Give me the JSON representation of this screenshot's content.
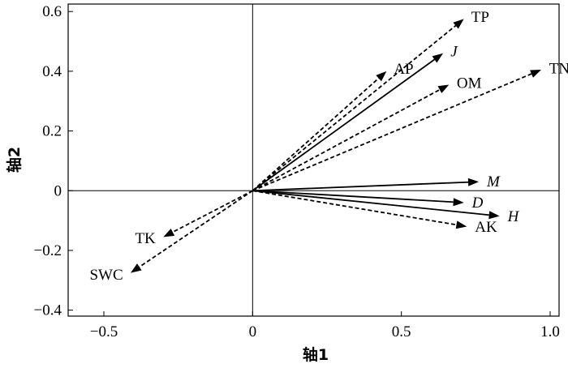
{
  "chart_data": {
    "type": "biplot",
    "xlabel": "轴1",
    "ylabel": "轴2",
    "xlim": [
      -0.62,
      1.03
    ],
    "ylim": [
      -0.42,
      0.625
    ],
    "xticks": [
      {
        "value": -0.5,
        "label": "−0.5"
      },
      {
        "value": 0,
        "label": "0"
      },
      {
        "value": 0.5,
        "label": "0.5"
      },
      {
        "value": 1.0,
        "label": "1.0"
      }
    ],
    "yticks": [
      {
        "value": -0.4,
        "label": "−0.4"
      },
      {
        "value": -0.2,
        "label": "−0.2"
      },
      {
        "value": 0,
        "label": "0"
      },
      {
        "value": 0.2,
        "label": "0.2"
      },
      {
        "value": 0.4,
        "label": "0.4"
      },
      {
        "value": 0.6,
        "label": "0.6"
      }
    ],
    "vectors": [
      {
        "name": "TP",
        "x": 0.71,
        "y": 0.575,
        "style": "dashed",
        "italic": false
      },
      {
        "name": "J",
        "x": 0.64,
        "y": 0.46,
        "style": "solid",
        "italic": true
      },
      {
        "name": "AP",
        "x": 0.45,
        "y": 0.4,
        "style": "dashed",
        "italic": false
      },
      {
        "name": "OM",
        "x": 0.66,
        "y": 0.355,
        "style": "dashed",
        "italic": false
      },
      {
        "name": "TN",
        "x": 0.97,
        "y": 0.405,
        "style": "dashed",
        "italic": false
      },
      {
        "name": "M",
        "x": 0.76,
        "y": 0.03,
        "style": "solid",
        "italic": true
      },
      {
        "name": "D",
        "x": 0.71,
        "y": -0.04,
        "style": "solid",
        "italic": true
      },
      {
        "name": "H",
        "x": 0.83,
        "y": -0.085,
        "style": "solid",
        "italic": true
      },
      {
        "name": "AK",
        "x": 0.72,
        "y": -0.12,
        "style": "dashed",
        "italic": false
      },
      {
        "name": "TK",
        "x": -0.3,
        "y": -0.155,
        "style": "dashed",
        "italic": false
      },
      {
        "name": "SWC",
        "x": -0.41,
        "y": -0.275,
        "style": "dashed",
        "italic": false
      }
    ]
  }
}
